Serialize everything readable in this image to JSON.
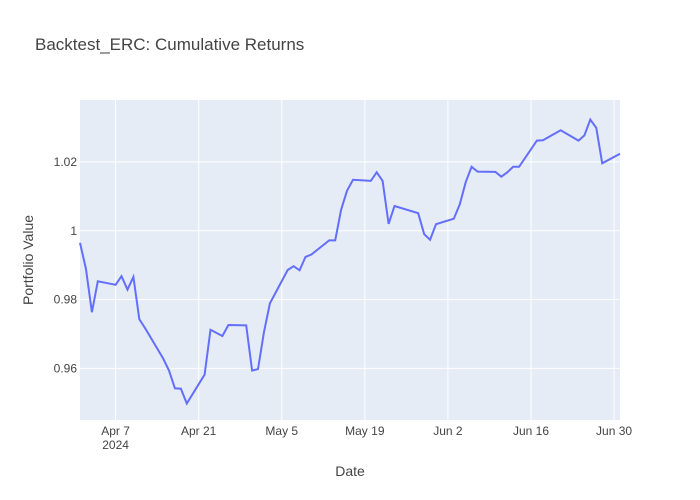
{
  "chart_data": {
    "type": "line",
    "title": "Backtest_ERC: Cumulative Returns",
    "xlabel": "Date",
    "ylabel": "Portfolio Value",
    "x_range": [
      "2024-04-01",
      "2024-07-01"
    ],
    "ylim": [
      0.945,
      1.038
    ],
    "grid": true,
    "colors": {
      "plot_bg": "#e5ecf6",
      "line": "#636efa"
    },
    "x_ticks": [
      {
        "date": "2024-04-07",
        "label": "Apr 7",
        "sublabel": "2024"
      },
      {
        "date": "2024-04-21",
        "label": "Apr 21"
      },
      {
        "date": "2024-05-05",
        "label": "May 5"
      },
      {
        "date": "2024-05-19",
        "label": "May 19"
      },
      {
        "date": "2024-06-02",
        "label": "Jun 2"
      },
      {
        "date": "2024-06-16",
        "label": "Jun 16"
      },
      {
        "date": "2024-06-30",
        "label": "Jun 30"
      }
    ],
    "y_ticks": [
      {
        "value": 0.96,
        "label": "0.96"
      },
      {
        "value": 0.98,
        "label": "0.98"
      },
      {
        "value": 1.0,
        "label": "1"
      },
      {
        "value": 1.02,
        "label": "1.02"
      }
    ],
    "series": [
      {
        "x": [
          "2024-04-01",
          "2024-04-02",
          "2024-04-03",
          "2024-04-04",
          "2024-04-07",
          "2024-04-08",
          "2024-04-09",
          "2024-04-10",
          "2024-04-11",
          "2024-04-12",
          "2024-04-15",
          "2024-04-16",
          "2024-04-17",
          "2024-04-18",
          "2024-04-19",
          "2024-04-22",
          "2024-04-23",
          "2024-04-25",
          "2024-04-26",
          "2024-04-29",
          "2024-04-30",
          "2024-05-01",
          "2024-05-02",
          "2024-05-03",
          "2024-05-06",
          "2024-05-07",
          "2024-05-08",
          "2024-05-09",
          "2024-05-10",
          "2024-05-13",
          "2024-05-14",
          "2024-05-15",
          "2024-05-16",
          "2024-05-17",
          "2024-05-20",
          "2024-05-21",
          "2024-05-22",
          "2024-05-23",
          "2024-05-24",
          "2024-05-28",
          "2024-05-29",
          "2024-05-30",
          "2024-05-31",
          "2024-06-03",
          "2024-06-04",
          "2024-06-05",
          "2024-06-06",
          "2024-06-07",
          "2024-06-10",
          "2024-06-11",
          "2024-06-12",
          "2024-06-13",
          "2024-06-14",
          "2024-06-17",
          "2024-06-18",
          "2024-06-21",
          "2024-06-24",
          "2024-06-25",
          "2024-06-26",
          "2024-06-27",
          "2024-06-28",
          "2024-07-01"
        ],
        "y": [
          0.9965,
          0.989,
          0.9763,
          0.9853,
          0.9843,
          0.9868,
          0.9829,
          0.9866,
          0.9743,
          0.9716,
          0.9629,
          0.9594,
          0.9542,
          0.9541,
          0.9498,
          0.9582,
          0.9712,
          0.9694,
          0.9726,
          0.9725,
          0.9594,
          0.9598,
          0.9706,
          0.9789,
          0.9886,
          0.9897,
          0.9885,
          0.9924,
          0.9931,
          0.9972,
          0.9972,
          1.0061,
          1.0116,
          1.0148,
          1.0145,
          1.017,
          1.0145,
          1.002,
          1.0072,
          1.0051,
          0.999,
          0.9974,
          1.0019,
          1.0035,
          1.0077,
          1.0141,
          1.0186,
          1.0172,
          1.0171,
          1.0157,
          1.017,
          1.0186,
          1.0186,
          1.0262,
          1.0263,
          1.0292,
          1.0262,
          1.0277,
          1.0323,
          1.0299,
          1.0196,
          1.0224
        ]
      }
    ]
  }
}
